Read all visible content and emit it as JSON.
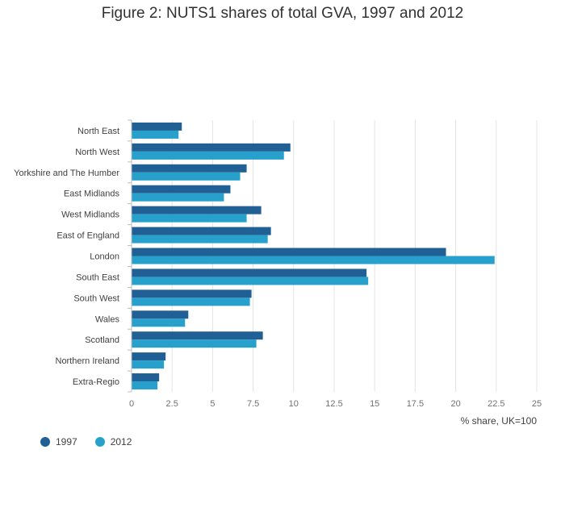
{
  "chart_data": {
    "type": "bar",
    "orientation": "horizontal",
    "title": "Figure 2: NUTS1 shares of total GVA, 1997 and 2012",
    "xlabel": "% share, UK=100",
    "ylabel": "",
    "xlim": [
      0,
      25
    ],
    "xticks": [
      0,
      2.5,
      5,
      7.5,
      10,
      12.5,
      15,
      17.5,
      20,
      22.5,
      25
    ],
    "xtick_labels": [
      "0",
      "2.5",
      "5",
      "7.5",
      "10",
      "12.5",
      "15",
      "17.5",
      "20",
      "22.5",
      "25"
    ],
    "grid": true,
    "legend_position": "bottom-left",
    "categories": [
      "North East",
      "North West",
      "Yorkshire and The Humber",
      "East Midlands",
      "West Midlands",
      "East of England",
      "London",
      "South East",
      "South West",
      "Wales",
      "Scotland",
      "Northern Ireland",
      "Extra-Regio"
    ],
    "series": [
      {
        "name": "1997",
        "color": "#206095",
        "values": [
          3.1,
          9.8,
          7.1,
          6.1,
          8.0,
          8.6,
          19.4,
          14.5,
          7.4,
          3.5,
          8.1,
          2.1,
          1.7
        ]
      },
      {
        "name": "2012",
        "color": "#27a0cc",
        "values": [
          2.9,
          9.4,
          6.7,
          5.7,
          7.1,
          8.4,
          22.4,
          14.6,
          7.3,
          3.3,
          7.7,
          2.0,
          1.6
        ]
      }
    ]
  }
}
